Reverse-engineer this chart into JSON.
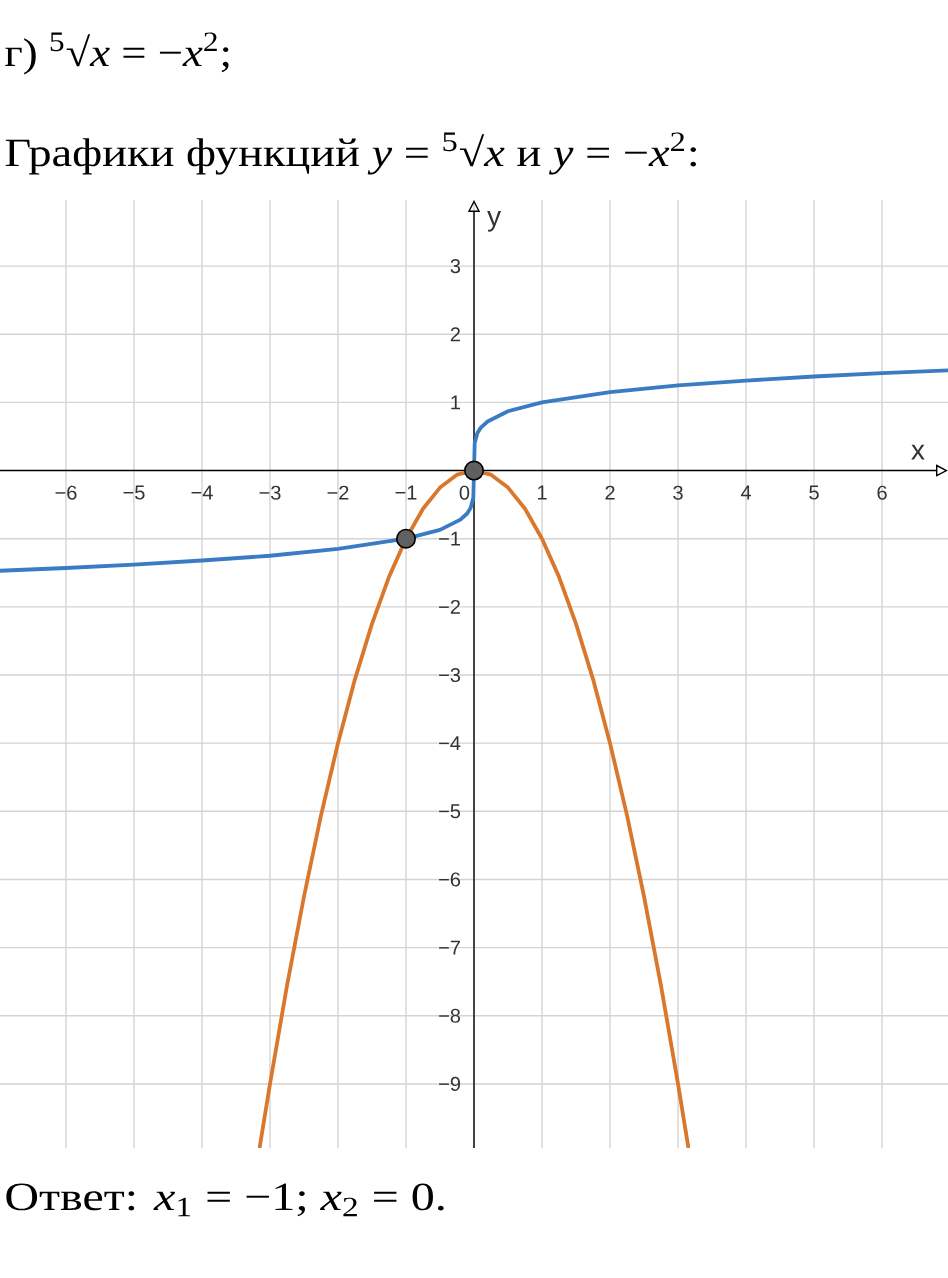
{
  "chart_data": {
    "type": "line",
    "title": "г) $^{5}$√*x* = −*x*$^{2}$;",
    "subtitle": "Графики функций *y* = $^{5}$√*x* и *y* = −*x*$^{2}$:",
    "xlabel": "x",
    "ylabel": "y",
    "annotations": [
      "Ответ:  *x*$_{1}$ = −1; *x*$_{2}$ = 0."
    ],
    "xlim": [
      -6.97,
      6.97
    ],
    "ylim": [
      -9.94,
      3.97
    ],
    "xticks": [
      {
        "value": -6,
        "label": "−6"
      },
      {
        "value": -5,
        "label": "−5"
      },
      {
        "value": -4,
        "label": "−4"
      },
      {
        "value": -3,
        "label": "−3"
      },
      {
        "value": -2,
        "label": "−2"
      },
      {
        "value": -1,
        "label": "−1"
      },
      0,
      1,
      2,
      3,
      4,
      5,
      6
    ],
    "yticks": [
      {
        "value": -9,
        "label": "−9"
      },
      {
        "value": -8,
        "label": "−8"
      },
      {
        "value": -7,
        "label": "−7"
      },
      {
        "value": -6,
        "label": "−6"
      },
      {
        "value": -5,
        "label": "−5"
      },
      {
        "value": -4,
        "label": "−4"
      },
      {
        "value": -3,
        "label": "−3"
      },
      {
        "value": -2,
        "label": "−2"
      },
      {
        "value": -1,
        "label": "−1"
      },
      1,
      2,
      3
    ],
    "grid": true,
    "series": [
      {
        "color": "#3a7cc4",
        "x": [
          -6.97,
          -6,
          -5,
          -4,
          -3,
          -2,
          -1,
          -0.5,
          -0.2,
          -0.1,
          -0.05,
          -0.01,
          0,
          0.01,
          0.05,
          0.1,
          0.2,
          0.5,
          1,
          2,
          3,
          4,
          5,
          6,
          6.97
        ],
        "values": [
          -1.47,
          -1.43,
          -1.38,
          -1.32,
          -1.25,
          -1.15,
          -1,
          -0.87,
          -0.72,
          -0.63,
          -0.55,
          -0.4,
          0,
          0.4,
          0.55,
          0.63,
          0.72,
          0.87,
          1,
          1.15,
          1.25,
          1.32,
          1.38,
          1.43,
          1.47
        ]
      },
      {
        "color": "#d9772c",
        "x": [
          -3.15,
          -3,
          -2.75,
          -2.5,
          -2.25,
          -2,
          -1.75,
          -1.5,
          -1.25,
          -1,
          -0.75,
          -0.5,
          -0.25,
          0,
          0.25,
          0.5,
          0.75,
          1,
          1.25,
          1.5,
          1.75,
          2,
          2.25,
          2.5,
          2.75,
          3,
          3.15
        ],
        "values": [
          -9.92,
          -9,
          -7.56,
          -6.25,
          -5.06,
          -4,
          -3.06,
          -2.25,
          -1.56,
          -1,
          -0.56,
          -0.25,
          -0.06,
          0,
          -0.06,
          -0.25,
          -0.56,
          -1,
          -1.56,
          -2.25,
          -3.06,
          -4,
          -5.06,
          -6.25,
          -7.56,
          -9,
          -9.92
        ]
      },
      {
        "type": "scatter",
        "marker": "circle",
        "color": "#606060",
        "x": [
          -1,
          0
        ],
        "values": [
          -1,
          0
        ]
      }
    ]
  }
}
